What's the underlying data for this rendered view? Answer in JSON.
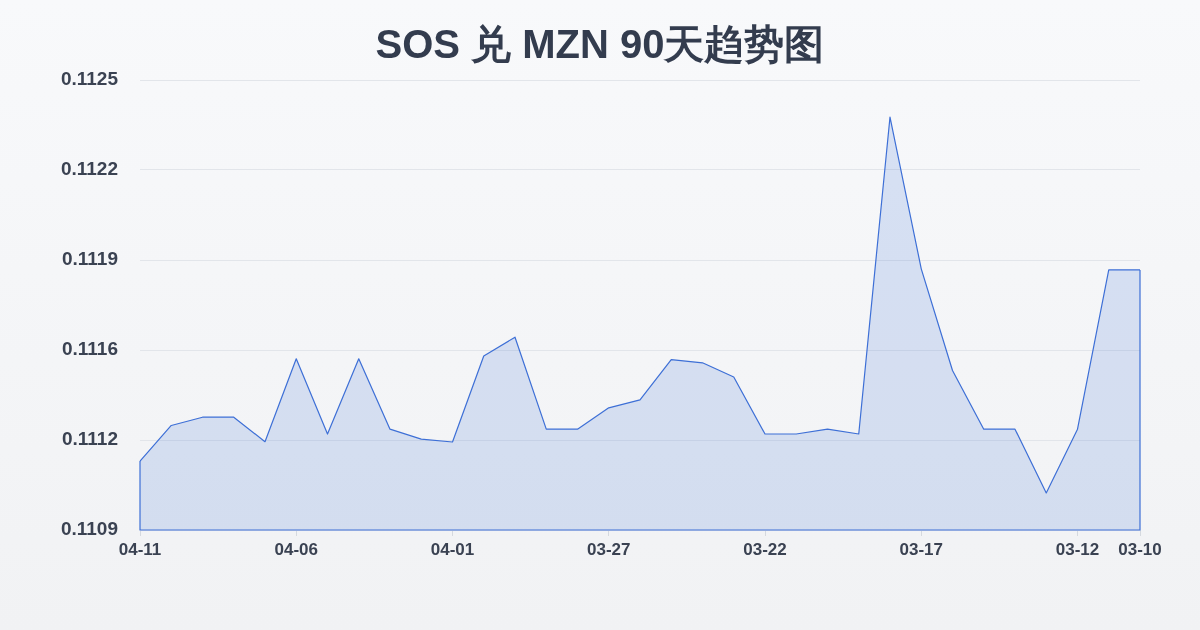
{
  "chart_data": {
    "type": "area",
    "title": "SOS 兑 MZN 90天趋势图",
    "categories": [
      "04-11",
      null,
      null,
      null,
      null,
      "04-06",
      null,
      null,
      null,
      null,
      "04-01",
      null,
      null,
      null,
      null,
      "03-27",
      null,
      null,
      null,
      null,
      "03-22",
      null,
      null,
      null,
      null,
      "03-17",
      null,
      null,
      null,
      null,
      "03-12",
      null,
      "03-10"
    ],
    "series": [
      {
        "color": "#3d6fd6",
        "values": [
          0.111162,
          0.111287,
          0.111316,
          0.111316,
          0.11123,
          0.111521,
          0.111257,
          0.111521,
          0.111274,
          0.111239,
          0.111229,
          0.111531,
          0.111597,
          0.111274,
          0.111274,
          0.111349,
          0.111377,
          0.111518,
          0.111507,
          0.111457,
          0.111257,
          0.111257,
          0.111274,
          0.111257,
          0.11237,
          0.111837,
          0.11148,
          0.111274,
          0.111274,
          0.11105,
          0.111274,
          0.111833,
          0.111833
        ]
      }
    ],
    "ylim": [
      0.11092,
      0.1125
    ],
    "yticks": [
      {
        "value": 0.11092,
        "label": "0.1109"
      },
      {
        "value": 0.111236,
        "label": "0.1112"
      },
      {
        "value": 0.111552,
        "label": "0.1116"
      },
      {
        "value": 0.111868,
        "label": "0.1119"
      },
      {
        "value": 0.112184,
        "label": "0.1122"
      },
      0.1125
    ],
    "grid": "y",
    "marker": "none"
  }
}
